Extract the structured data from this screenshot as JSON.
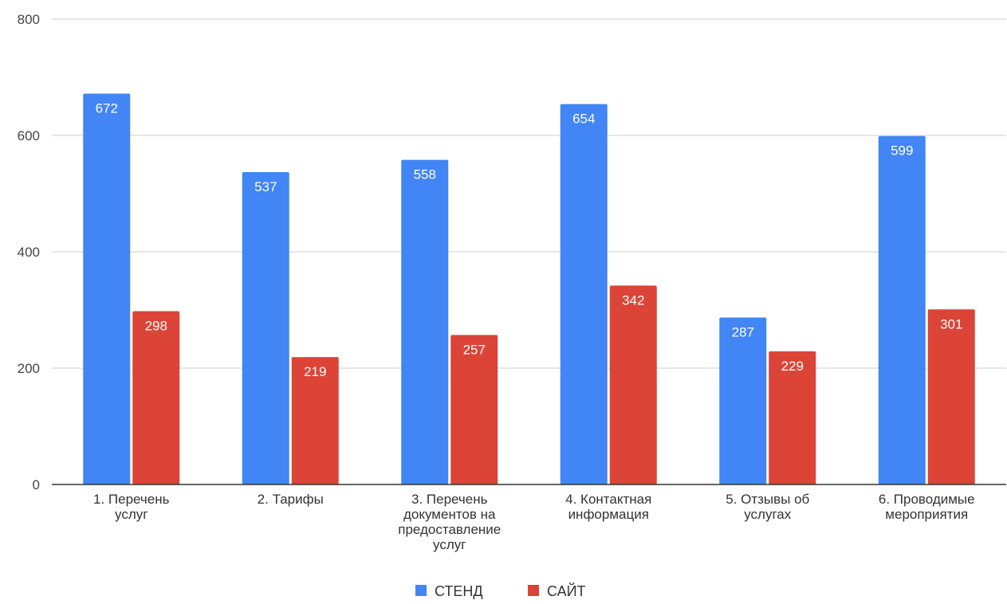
{
  "chart_data": {
    "type": "bar",
    "title": "",
    "xlabel": "",
    "ylabel": "",
    "categories": [
      [
        "1. Перечень",
        "услуг"
      ],
      [
        "2. Тарифы"
      ],
      [
        "3. Перечень",
        "документов на",
        "предоставление",
        "услуг"
      ],
      [
        "4. Контактная",
        "информация"
      ],
      [
        "5. Отзывы об",
        "услугах"
      ],
      [
        "6. Проводимые",
        "мероприятия"
      ]
    ],
    "series": [
      {
        "name": "СТЕНД",
        "color": "#4285f4",
        "values": [
          672,
          537,
          558,
          654,
          287,
          599
        ]
      },
      {
        "name": "САЙТ",
        "color": "#db4437",
        "values": [
          298,
          219,
          257,
          342,
          229,
          301
        ]
      }
    ],
    "ylim": [
      0,
      800
    ],
    "yticks": [
      0,
      200,
      400,
      600,
      800
    ],
    "grid": true,
    "legend": "bottom"
  }
}
